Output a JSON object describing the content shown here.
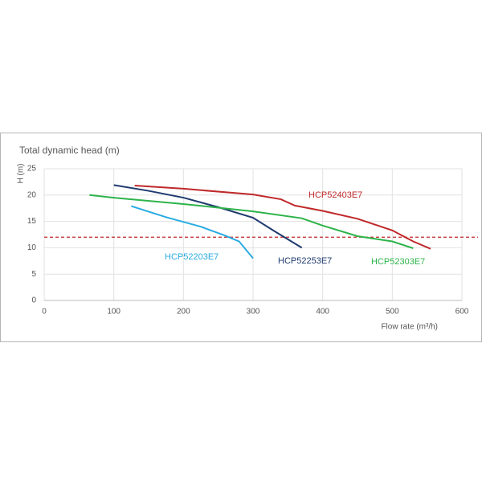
{
  "chart_data": {
    "type": "line",
    "title": "Total dynamic head (m)",
    "y_label": "H (m)",
    "x_label": "Flow rate (m³/h)",
    "xlim": [
      0,
      600
    ],
    "xticks": [
      0,
      100,
      200,
      300,
      400,
      500,
      600
    ],
    "ylim": [
      0,
      25
    ],
    "yticks": [
      0,
      5,
      10,
      15,
      20,
      25
    ],
    "grid": true,
    "reference_line": 12,
    "reference_color": "#c0282a",
    "series": [
      {
        "name": "HCP52403E7",
        "color": "#c0282a",
        "x": [
          130,
          200,
          300,
          340,
          360,
          400,
          450,
          500,
          530,
          555
        ],
        "values": [
          21.8,
          21.2,
          20.1,
          19.2,
          18,
          17,
          15.5,
          13.3,
          11.2,
          9.8
        ]
      },
      {
        "name": "HCP52253E7",
        "color": "#1f3a6e",
        "x": [
          100,
          150,
          200,
          250,
          300,
          330,
          350,
          370
        ],
        "values": [
          21.9,
          20.8,
          19.5,
          17.7,
          15.7,
          13.2,
          11.6,
          10
        ]
      },
      {
        "name": "HCP52303E7",
        "color": "#2db34a",
        "x": [
          65,
          100,
          200,
          300,
          370,
          400,
          450,
          500,
          530
        ],
        "values": [
          20,
          19.5,
          18.3,
          16.9,
          15.6,
          14.2,
          12.2,
          11.2,
          9.9
        ]
      },
      {
        "name": "HCP52203E7",
        "color": "#29abe2",
        "x": [
          125,
          175,
          225,
          260,
          280,
          300
        ],
        "values": [
          17.9,
          15.8,
          14,
          12.3,
          11.2,
          8
        ]
      }
    ]
  }
}
